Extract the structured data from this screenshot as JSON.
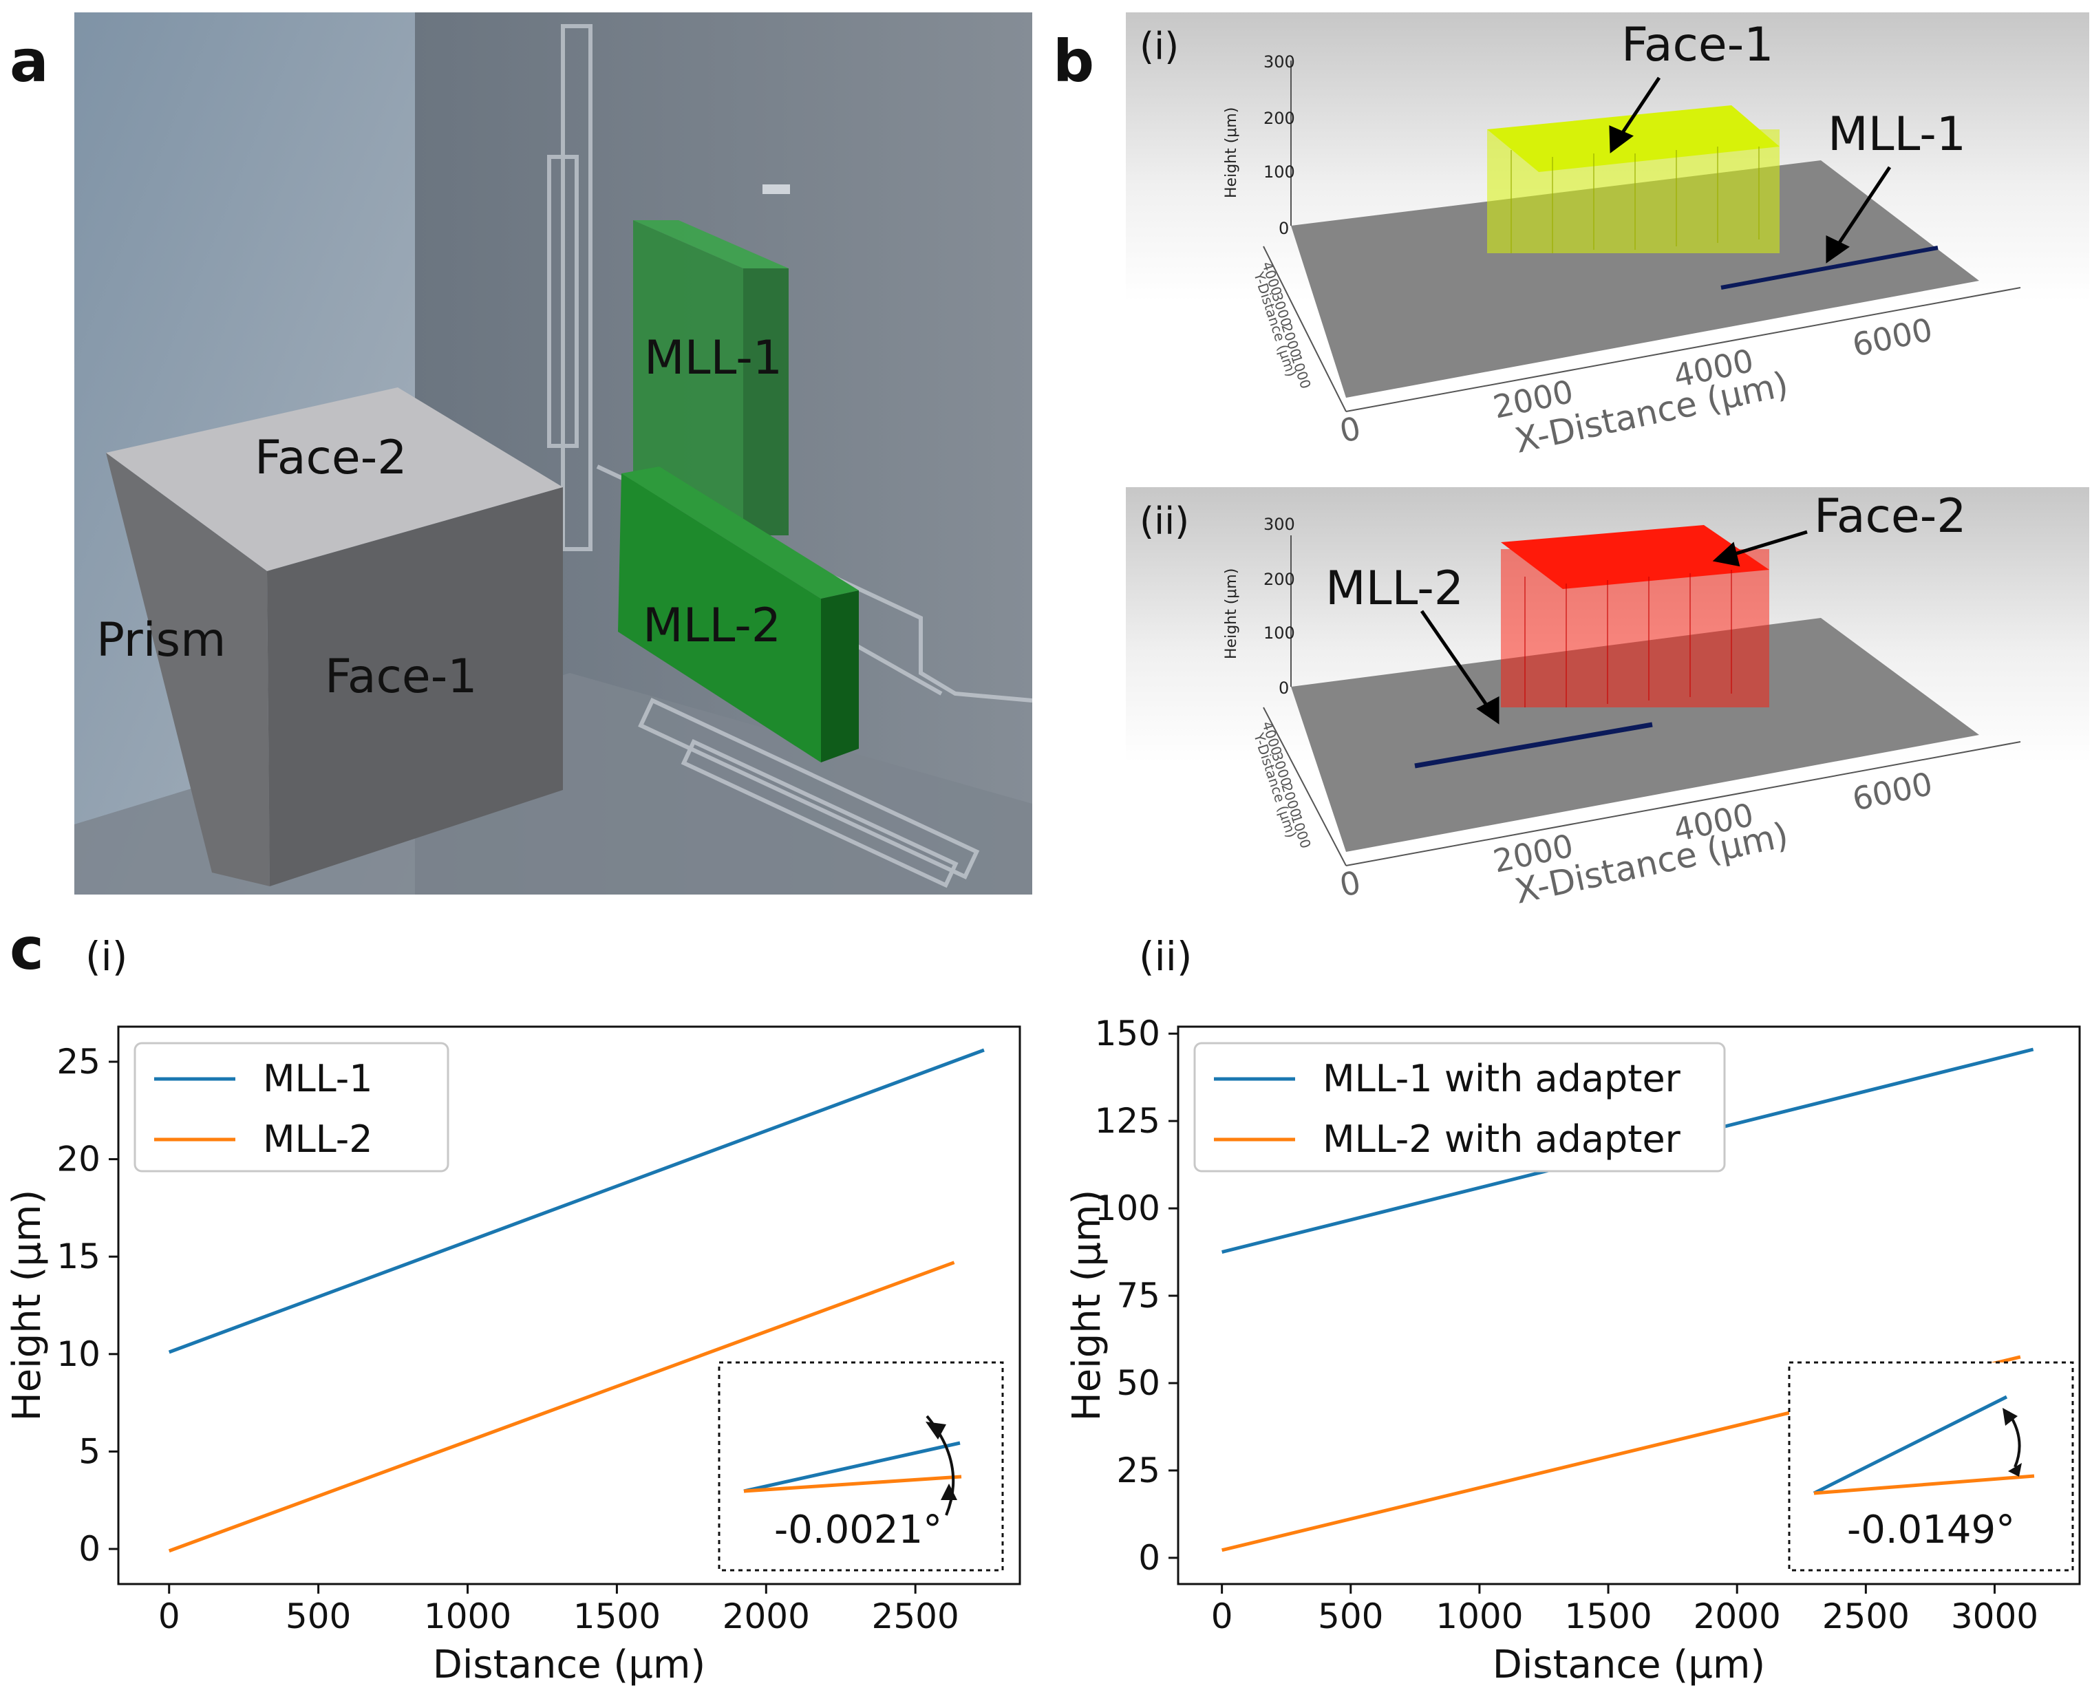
{
  "figure": {
    "panel_a": {
      "letter": "a",
      "labels": {
        "face2": "Face-2",
        "prism": "Prism",
        "face1": "Face-1",
        "mll1": "MLL-1",
        "mll2": "MLL-2"
      }
    },
    "panel_b": {
      "letter": "b",
      "sub_i": {
        "label": "(i)",
        "face_label": "Face-1",
        "mll_label": "MLL-1",
        "height_axis_title": "Height (μm)",
        "height_ticks": [
          "300",
          "200",
          "100",
          "0"
        ],
        "y_axis_title": "Y-Distance (μm)",
        "y_ticks": [
          "1000",
          "2000",
          "3000",
          "4000"
        ],
        "x_axis_title": "X-Distance (μm)",
        "x_ticks": [
          "0",
          "2000",
          "4000",
          "6000"
        ]
      },
      "sub_ii": {
        "label": "(ii)",
        "face_label": "Face-2",
        "mll_label": "MLL-2",
        "height_axis_title": "Height (μm)",
        "height_ticks": [
          "300",
          "200",
          "100",
          "0"
        ],
        "y_axis_title": "Y-Distance (μm)",
        "y_ticks": [
          "1000",
          "2000",
          "3000",
          "4000"
        ],
        "x_axis_title": "X-Distance (μm)",
        "x_ticks": [
          "0",
          "2000",
          "4000",
          "6000"
        ]
      }
    },
    "panel_c": {
      "letter": "c",
      "sub_i_label": "(i)",
      "sub_ii_label": "(ii)"
    }
  },
  "colors": {
    "series_blue": "#1a77b0",
    "series_orange": "#ff7f0e",
    "mll_green": "#1e7a2c",
    "face1_yellow": "#d7f20a",
    "face2_red": "#ff1a0a"
  },
  "chart_data": [
    {
      "type": "line",
      "xlabel": "Distance (μm)",
      "ylabel": "Height (μm)",
      "xlim": [
        -170,
        2850
      ],
      "ylim": [
        -1.8,
        26.8
      ],
      "xticks": [
        0,
        500,
        1000,
        1500,
        2000,
        2500
      ],
      "yticks": [
        0,
        5,
        10,
        15,
        20,
        25
      ],
      "legend_position": "top-left",
      "series": [
        {
          "name": "MLL-1",
          "x": [
            0,
            2730
          ],
          "y": [
            10.1,
            25.6
          ]
        },
        {
          "name": "MLL-2",
          "x": [
            0,
            2630
          ],
          "y": [
            -0.1,
            14.7
          ]
        }
      ],
      "inset": {
        "annotation": "-0.0021°"
      }
    },
    {
      "type": "line",
      "xlabel": "Distance (μm)",
      "ylabel": "Height (μm)",
      "xlim": [
        -170,
        3330
      ],
      "ylim": [
        -7.5,
        152
      ],
      "xticks": [
        0,
        500,
        1000,
        1500,
        2000,
        2500,
        3000
      ],
      "yticks": [
        0,
        25,
        50,
        75,
        100,
        125,
        150
      ],
      "legend_position": "top-left",
      "series": [
        {
          "name": "MLL-1 with adapter",
          "x": [
            0,
            3150
          ],
          "y": [
            87.5,
            145.5
          ]
        },
        {
          "name": "MLL-2 with adapter",
          "x": [
            0,
            3100
          ],
          "y": [
            2.2,
            57.5
          ]
        }
      ],
      "inset": {
        "annotation": "-0.0149°"
      }
    }
  ]
}
